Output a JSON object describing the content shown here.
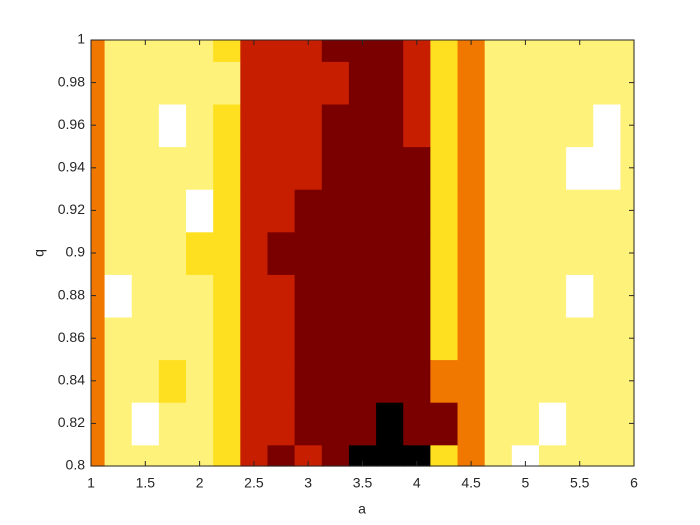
{
  "chart_data": {
    "type": "contour",
    "xlabel": "a",
    "ylabel": "q",
    "xlim": [
      1,
      6
    ],
    "ylim": [
      0.8,
      1
    ],
    "xticks": [
      1,
      1.5,
      2,
      2.5,
      3,
      3.5,
      4,
      4.5,
      5,
      5.5,
      6
    ],
    "yticks": [
      0.8,
      0.82,
      0.84,
      0.86,
      0.88,
      0.9,
      0.92,
      0.94,
      0.96,
      0.98,
      1
    ],
    "x": [
      1,
      1.25,
      1.5,
      1.75,
      2,
      2.25,
      2.5,
      2.75,
      3,
      3.25,
      3.5,
      3.75,
      4,
      4.25,
      4.5,
      4.75,
      5,
      5.25,
      5.5,
      5.75,
      6
    ],
    "y": [
      0.8,
      0.82,
      0.84,
      0.86,
      0.88,
      0.9,
      0.92,
      0.94,
      0.96,
      0.98,
      1
    ],
    "levels": [
      -1,
      0,
      1,
      2,
      3,
      4,
      5
    ],
    "colors": [
      "#000000",
      "#7a0000",
      "#c81e00",
      "#f07800",
      "#ffe020",
      "#fff27a",
      "#ffffff"
    ],
    "z": [
      [
        2,
        4,
        4,
        4,
        4,
        3,
        1,
        0,
        1,
        0,
        -1,
        -1,
        -1,
        3,
        2,
        4,
        5,
        4,
        4,
        4,
        4
      ],
      [
        2,
        4,
        5,
        4,
        4,
        3,
        1,
        1,
        0,
        0,
        0,
        -1,
        0,
        0,
        2,
        4,
        4,
        5,
        4,
        4,
        4
      ],
      [
        2,
        4,
        4,
        3,
        4,
        3,
        1,
        1,
        0,
        0,
        0,
        0,
        0,
        2,
        2,
        4,
        4,
        4,
        4,
        4,
        4
      ],
      [
        2,
        4,
        4,
        4,
        4,
        3,
        1,
        1,
        0,
        0,
        0,
        0,
        0,
        3,
        2,
        4,
        4,
        4,
        4,
        4,
        4
      ],
      [
        2,
        5,
        4,
        4,
        4,
        3,
        1,
        1,
        0,
        0,
        0,
        0,
        0,
        3,
        2,
        4,
        4,
        4,
        5,
        4,
        4
      ],
      [
        2,
        4,
        4,
        4,
        3,
        3,
        1,
        0,
        0,
        0,
        0,
        0,
        0,
        3,
        2,
        4,
        4,
        4,
        4,
        4,
        4
      ],
      [
        2,
        4,
        4,
        4,
        5,
        3,
        1,
        1,
        0,
        0,
        0,
        0,
        0,
        3,
        2,
        4,
        4,
        4,
        4,
        4,
        4
      ],
      [
        2,
        4,
        4,
        4,
        4,
        3,
        1,
        1,
        1,
        0,
        0,
        0,
        0,
        3,
        2,
        4,
        4,
        4,
        5,
        5,
        4
      ],
      [
        2,
        4,
        4,
        5,
        4,
        3,
        1,
        1,
        1,
        0,
        0,
        0,
        1,
        3,
        2,
        4,
        4,
        4,
        4,
        5,
        4
      ],
      [
        2,
        4,
        4,
        4,
        4,
        4,
        1,
        1,
        1,
        1,
        0,
        0,
        1,
        3,
        2,
        4,
        4,
        4,
        4,
        4,
        4
      ],
      [
        2,
        4,
        4,
        4,
        4,
        3,
        1,
        1,
        1,
        0,
        0,
        0,
        1,
        3,
        2,
        4,
        4,
        4,
        4,
        4,
        4
      ]
    ]
  }
}
